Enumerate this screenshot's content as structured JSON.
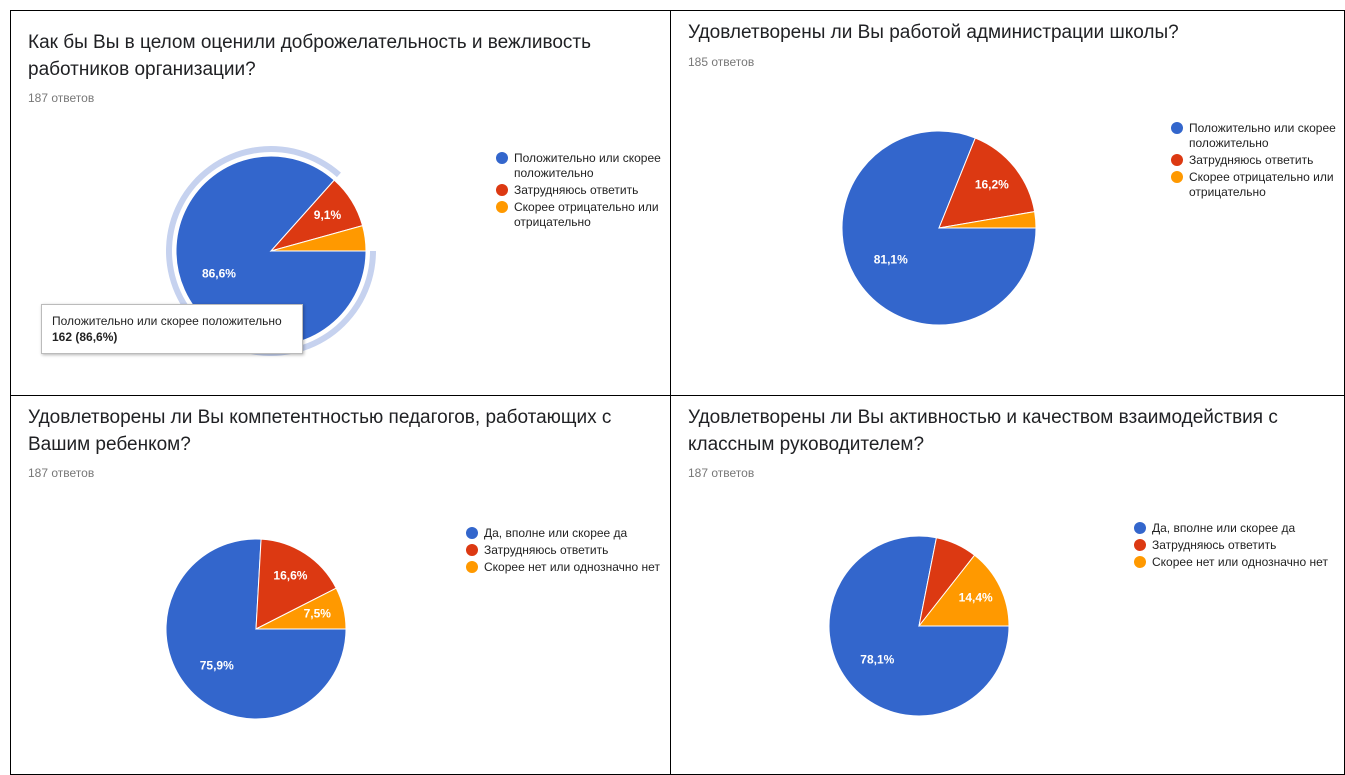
{
  "chart_data": [
    {
      "type": "pie",
      "title": "Как бы Вы в целом оценили доброжелательность и вежливость работников организации?",
      "subtitle": "187 ответов",
      "categories": [
        "Положительно или скорее положительно",
        "Затрудняюсь ответить",
        "Скорее отрицательно или отрицательно"
      ],
      "values": [
        86.6,
        9.1,
        4.3
      ],
      "value_labels": [
        "86,6%",
        "9,1%",
        null
      ],
      "colors": [
        "#3366cc",
        "#dc3912",
        "#ff9900"
      ],
      "highlight": 0,
      "tooltip": {
        "title": "Положительно или скорее положительно",
        "text": "162 (86,6%)"
      }
    },
    {
      "type": "pie",
      "title": "Удовлетворены ли Вы работой администрации школы?",
      "subtitle": "185 ответов",
      "categories": [
        "Положительно или скорее положительно",
        "Затрудняюсь ответить",
        "Скорее отрицательно или отрицательно"
      ],
      "values": [
        81.1,
        16.2,
        2.7
      ],
      "value_labels": [
        "81,1%",
        "16,2%",
        null
      ],
      "colors": [
        "#3366cc",
        "#dc3912",
        "#ff9900"
      ]
    },
    {
      "type": "pie",
      "title": "Удовлетворены ли Вы компетентностью педагогов, работающих с Вашим ребенком?",
      "subtitle": "187 ответов",
      "categories": [
        "Да, вполне или скорее да",
        "Затрудняюсь ответить",
        "Скорее нет или однозначно нет"
      ],
      "values": [
        75.9,
        16.6,
        7.5
      ],
      "value_labels": [
        "75,9%",
        "16,6%",
        "7,5%"
      ],
      "colors": [
        "#3366cc",
        "#dc3912",
        "#ff9900"
      ]
    },
    {
      "type": "pie",
      "title": "Удовлетворены ли Вы активностью и качеством взаимодействия с классным руководителем?",
      "subtitle": "187 ответов",
      "categories": [
        "Да, вполне или скорее да",
        "Затрудняюсь ответить",
        "Скорее нет или однозначно нет"
      ],
      "values": [
        78.1,
        7.5,
        14.4
      ],
      "value_labels": [
        "78,1%",
        null,
        "14,4%"
      ],
      "colors": [
        "#3366cc",
        "#dc3912",
        "#ff9900"
      ]
    }
  ]
}
